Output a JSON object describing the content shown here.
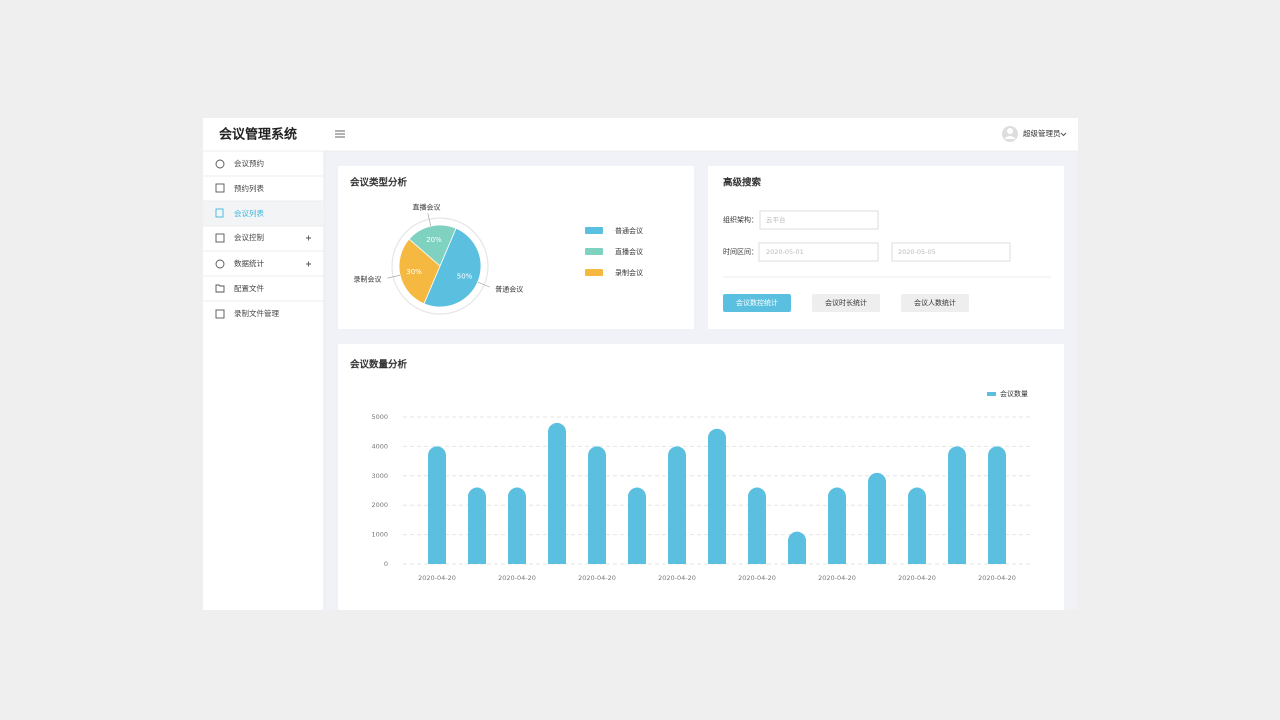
{
  "header": {
    "title": "会议管理系统",
    "user": "超级管理员"
  },
  "sidebar": {
    "items": [
      "会议预约",
      "预约列表",
      "会议列表",
      "会议控制",
      "数据统计",
      "配置文件",
      "录制文件管理"
    ]
  },
  "search": {
    "title": "高级搜索",
    "fields": [
      {
        "label": "组织架构：",
        "placeholder": "云平台"
      },
      {
        "label": "时间区间：",
        "start": "2020-05-01",
        "end": "2020-05-05"
      }
    ],
    "buttons": [
      "会议数控统计",
      "会议时长统计",
      "会议人数统计"
    ]
  },
  "chart_data": [
    {
      "type": "pie",
      "title": "会议类型分析",
      "categories": [
        "普通会议",
        "直播会议",
        "录制会议"
      ],
      "values": [
        50,
        20,
        30
      ],
      "value_labels": [
        "50%",
        "20%",
        "30%"
      ],
      "colors": [
        "#5bc0e0",
        "#7fd1c0",
        "#f5b942"
      ]
    },
    {
      "type": "bar",
      "title": "会议数量分析",
      "categories": [
        "2020-04-20",
        null,
        "2020-04-20",
        null,
        "2020-04-20",
        null,
        "2020-04-20",
        null,
        "2020-04-20",
        null,
        "2020-04-20",
        null,
        "2020-04-20",
        null,
        "2020-04-20"
      ],
      "series": [
        {
          "name": "会议数量",
          "color": "#5bc0e0",
          "values": [
            4000,
            2600,
            2600,
            4800,
            4000,
            2600,
            4000,
            4600,
            2600,
            1100,
            2600,
            3100,
            2600,
            4000,
            4000
          ]
        }
      ],
      "ylim": [
        0,
        5000
      ],
      "yticks": [
        0,
        1000,
        2000,
        3000,
        4000,
        5000
      ],
      "grid": true
    }
  ]
}
